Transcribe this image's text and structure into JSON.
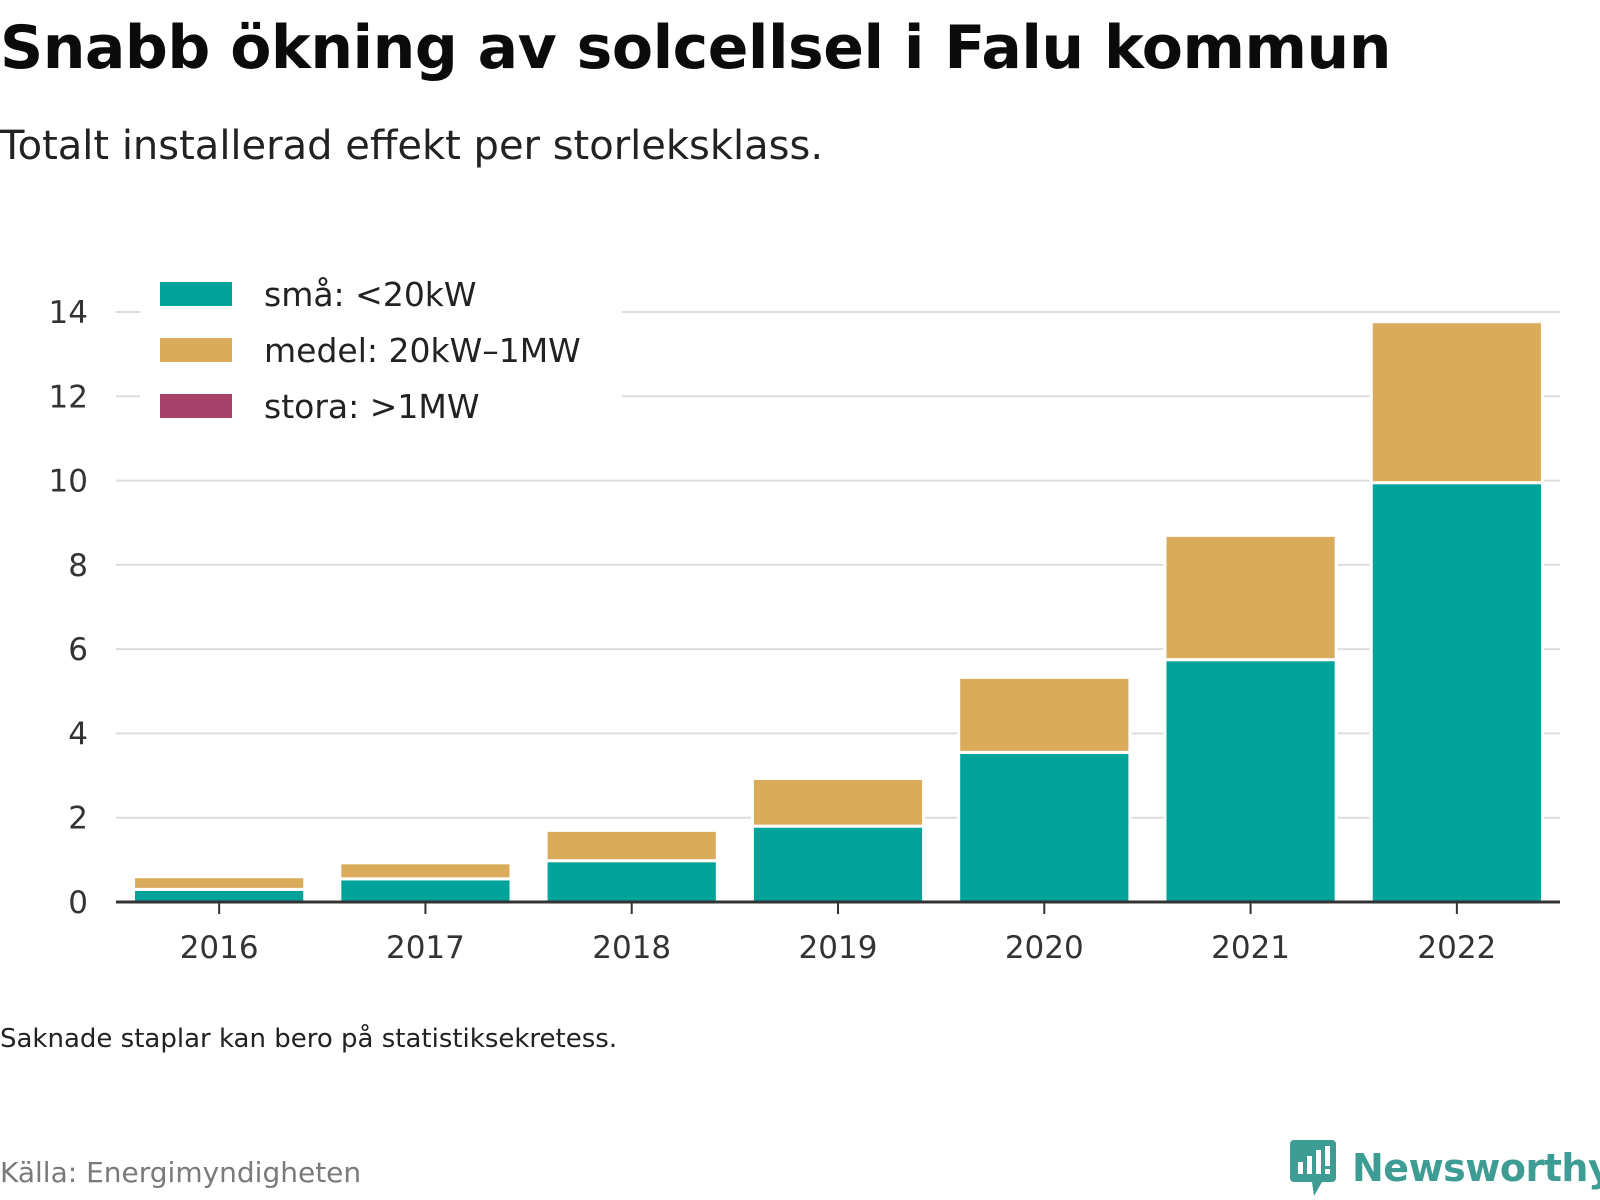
{
  "title": "Snabb ökning av solcellsel i Falu kommun",
  "subtitle": "Totalt installerad effekt per storleksklass.",
  "note": "Saknade staplar kan bero på statistiksekretess.",
  "source": "Källa: Energimyndigheten",
  "brand": {
    "name": "Newsworthy",
    "icon": "newsworthy-logo-icon",
    "color": "#3d9c94"
  },
  "chart_data": {
    "type": "bar",
    "stacked": true,
    "categories": [
      "2016",
      "2017",
      "2018",
      "2019",
      "2020",
      "2021",
      "2022"
    ],
    "series": [
      {
        "name": "små: <20kW",
        "color": "#00a399",
        "values": [
          0.3,
          0.55,
          0.98,
          1.8,
          3.55,
          5.75,
          9.95
        ]
      },
      {
        "name": "medel: 20kW–1MW",
        "color": "#daab5b",
        "values": [
          0.3,
          0.38,
          0.72,
          1.13,
          1.78,
          2.95,
          3.82
        ]
      },
      {
        "name": "stora: >1MW",
        "color": "#a6426a",
        "values": [
          0,
          0,
          0,
          0,
          0,
          0,
          0
        ]
      }
    ],
    "ylim": [
      0,
      14
    ],
    "yticks": [
      0,
      2,
      4,
      6,
      8,
      10,
      12,
      14
    ],
    "grid": true,
    "legend_position": "top-left",
    "xlabel": "",
    "ylabel": ""
  }
}
